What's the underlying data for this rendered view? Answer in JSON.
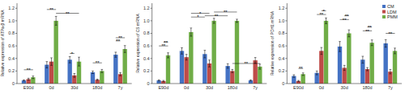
{
  "chart_data": [
    {
      "type": "bar",
      "ylabel": "Relative expression of ATPa-β mRNA",
      "categories": [
        "E90d",
        "0d",
        "30d",
        "180d",
        "7y"
      ],
      "series": [
        {
          "name": "CM",
          "color": "#4472C4",
          "values": [
            0.05,
            0.3,
            0.38,
            0.18,
            0.46
          ],
          "errors": [
            0.01,
            0.05,
            0.05,
            0.02,
            0.04
          ]
        },
        {
          "name": "LDM",
          "color": "#BE4B48",
          "values": [
            0.07,
            0.35,
            0.13,
            0.06,
            0.15
          ],
          "errors": [
            0.015,
            0.06,
            0.03,
            0.01,
            0.025
          ]
        },
        {
          "name": "PMM",
          "color": "#70AD47",
          "values": [
            0.1,
            1.0,
            0.35,
            0.2,
            0.55
          ],
          "errors": [
            0.02,
            0.07,
            0.07,
            0.025,
            0.055
          ]
        }
      ],
      "ylim": [
        0,
        1.28
      ],
      "yticks": [
        0,
        0.2,
        0.4,
        0.6,
        0.8,
        {
          "value": 1,
          "label": "1.0"
        },
        1.2
      ],
      "grid": false,
      "annotations": [
        {
          "label": "**",
          "y": 0.22,
          "start": {
            "category": "E90d",
            "series": "CM"
          },
          "end": {
            "category": "E90d",
            "series": "PMM"
          }
        },
        {
          "label": "**",
          "y": 1.12,
          "start": {
            "category": "0d",
            "series": "PMM"
          },
          "end": {
            "category": "30d",
            "series": "PMM"
          }
        },
        {
          "label": "**",
          "y": 1.18,
          "start": {
            "category": "0d",
            "series": "CM"
          },
          "end": {
            "category": "0d",
            "series": "PMM"
          }
        },
        {
          "label": "*",
          "y": 0.48,
          "start": {
            "category": "30d",
            "series": "CM"
          },
          "end": {
            "category": "30d",
            "series": "LDM"
          }
        },
        {
          "label": "**",
          "y": 0.33,
          "start": {
            "category": "180d",
            "series": "CM"
          },
          "end": {
            "category": "180d",
            "series": "PMM"
          }
        },
        {
          "label": "**",
          "y": 0.68,
          "start": {
            "category": "7y",
            "series": "CM"
          },
          "end": {
            "category": "7y",
            "series": "LDM"
          }
        },
        {
          "label": "**",
          "y": 0.73,
          "start": {
            "category": "7y",
            "series": "CM"
          },
          "end": {
            "category": "7y",
            "series": "PMM"
          }
        }
      ]
    },
    {
      "type": "bar",
      "ylabel": "Relative expression of CS mRNA",
      "categories": [
        "E90d",
        "0d",
        "30d",
        "180d",
        "7y"
      ],
      "series": [
        {
          "name": "CM",
          "color": "#4472C4",
          "values": [
            0.05,
            0.52,
            0.47,
            0.28,
            0.05
          ],
          "errors": [
            0.01,
            0.05,
            0.06,
            0.035,
            0.01
          ]
        },
        {
          "name": "LDM",
          "color": "#BE4B48",
          "values": [
            0.04,
            0.42,
            0.32,
            0.2,
            0.37
          ],
          "errors": [
            0.01,
            0.045,
            0.055,
            0.025,
            0.045
          ]
        },
        {
          "name": "PMM",
          "color": "#70AD47",
          "values": [
            0.45,
            0.82,
            1.0,
            1.0,
            0.27
          ],
          "errors": [
            0.04,
            0.065,
            0.04,
            0.025,
            0.04
          ]
        }
      ],
      "ylim": [
        0,
        1.28
      ],
      "yticks": [
        0,
        0.2,
        0.4,
        0.6,
        0.8,
        {
          "value": 1,
          "label": "1.0"
        },
        1.2
      ],
      "grid": false,
      "annotations": [
        {
          "label": "**",
          "y": 0.6,
          "start": {
            "category": "E90d",
            "series": "CM"
          },
          "end": {
            "category": "E90d",
            "series": "PMM"
          }
        },
        {
          "label": "**",
          "y": 0.66,
          "start": {
            "category": "E90d",
            "series": "LDM"
          },
          "end": {
            "category": "E90d",
            "series": "PMM"
          }
        },
        {
          "label": "*",
          "y": 1.06,
          "start": {
            "category": "0d",
            "series": "PMM"
          },
          "end": {
            "category": "30d",
            "series": "CM"
          }
        },
        {
          "label": "*",
          "y": 1.12,
          "start": {
            "category": "0d",
            "series": "PMM"
          },
          "end": {
            "category": "30d",
            "series": "LDM"
          }
        },
        {
          "label": "**",
          "y": 1.08,
          "start": {
            "category": "30d",
            "series": "CM"
          },
          "end": {
            "category": "180d",
            "series": "CM"
          }
        },
        {
          "label": "**",
          "y": 1.14,
          "start": {
            "category": "30d",
            "series": "PMM"
          },
          "end": {
            "category": "180d",
            "series": "PMM"
          }
        },
        {
          "label": "**",
          "y": 0.32,
          "start": {
            "category": "180d",
            "series": "LDM"
          },
          "end": {
            "category": "7y",
            "series": "PMM"
          }
        }
      ]
    },
    {
      "type": "bar",
      "ylabel": "Relative expression of PDH1 mRNA",
      "categories": [
        "E90d",
        "0d",
        "30d",
        "180d",
        "7y"
      ],
      "series": [
        {
          "name": "CM",
          "color": "#4472C4",
          "values": [
            0.12,
            0.17,
            0.59,
            0.38,
            0.64
          ],
          "errors": [
            0.02,
            0.03,
            0.08,
            0.055,
            0.06
          ]
        },
        {
          "name": "LDM",
          "color": "#BE4B48",
          "values": [
            0.04,
            0.52,
            0.25,
            0.23,
            0.19
          ],
          "errors": [
            0.01,
            0.055,
            0.04,
            0.025,
            0.035
          ]
        },
        {
          "name": "PMM",
          "color": "#70AD47",
          "values": [
            0.15,
            1.0,
            0.8,
            0.65,
            0.52
          ],
          "errors": [
            0.02,
            0.045,
            0.055,
            0.045,
            0.045
          ]
        }
      ],
      "ylim": [
        0,
        1.28
      ],
      "yticks": [
        0,
        0.2,
        0.4,
        0.6,
        0.8,
        {
          "value": 1,
          "label": "1.0"
        },
        1.2
      ],
      "grid": false,
      "legend": "upper right",
      "annotations": [
        {
          "label": "**",
          "y": 0.24,
          "start": {
            "category": "E90d",
            "series": "LDM"
          },
          "end": {
            "category": "E90d",
            "series": "PMM"
          }
        },
        {
          "label": "**",
          "y": 1.1,
          "start": {
            "category": "0d",
            "series": "CM"
          },
          "end": {
            "category": "0d",
            "series": "PMM"
          }
        },
        {
          "label": "*",
          "y": 1.16,
          "start": {
            "category": "0d",
            "series": "LDM"
          },
          "end": {
            "category": "0d",
            "series": "PMM"
          }
        },
        {
          "label": "**",
          "y": 1.02,
          "start": {
            "category": "30d",
            "series": "CM"
          },
          "end": {
            "category": "30d",
            "series": "PMM"
          }
        },
        {
          "label": "**",
          "y": 1.08,
          "start": {
            "category": "30d",
            "series": "LDM"
          },
          "end": {
            "category": "30d",
            "series": "PMM"
          }
        },
        {
          "label": "**",
          "y": 0.84,
          "start": {
            "category": "180d",
            "series": "CM"
          },
          "end": {
            "category": "180d",
            "series": "PMM"
          }
        },
        {
          "label": "**",
          "y": 0.9,
          "start": {
            "category": "180d",
            "series": "LDM"
          },
          "end": {
            "category": "180d",
            "series": "PMM"
          }
        },
        {
          "label": "**",
          "y": 0.8,
          "start": {
            "category": "7y",
            "series": "CM"
          },
          "end": {
            "category": "7y",
            "series": "PMM"
          }
        }
      ]
    }
  ]
}
